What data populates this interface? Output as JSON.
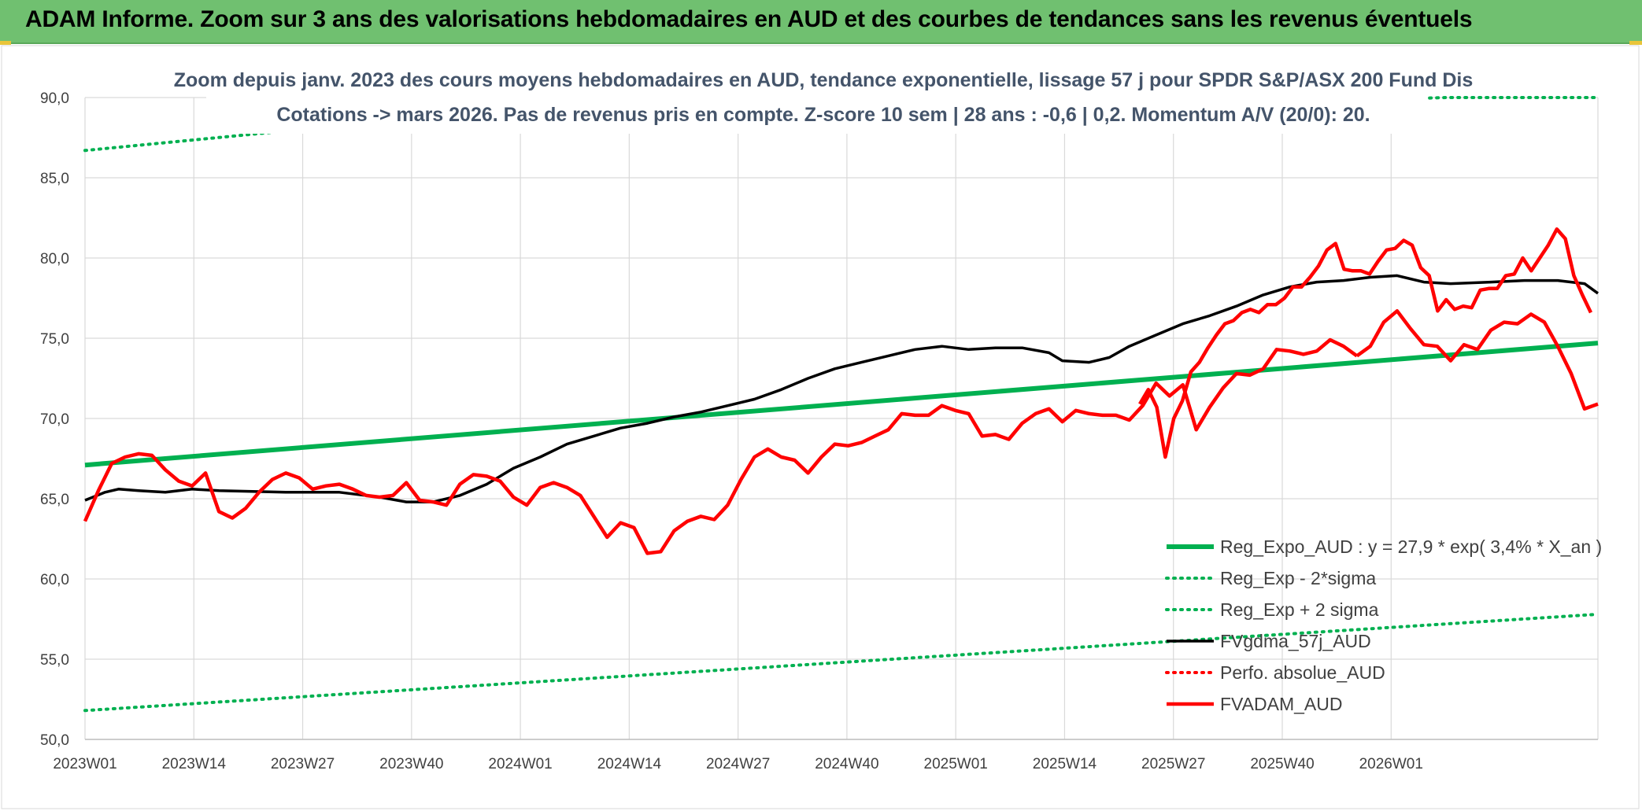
{
  "header": {
    "title": "ADAM Informe. Zoom sur 3 ans des valorisations hebdomadaires en AUD et des courbes de tendances sans les revenus éventuels"
  },
  "colors": {
    "header_bg": "#70c070",
    "reg_expo": "#00b050",
    "sigma_bands": "#00b050",
    "moving_avg": "#000000",
    "perfo": "#ff0000",
    "fvadam": "#ff0000"
  },
  "chart_data": {
    "type": "line",
    "title_line1": "Zoom depuis janv. 2023 des cours moyens hebdomadaires en AUD, tendance exponentielle, lissage 57 j pour SPDR S&P/ASX 200 Fund Dis",
    "title_line2": "Cotations -> mars 2026. Pas de revenus pris en compte. Z-score 10 sem | 28 ans : -0,6 | 0,2. Momentum A/V (20/0): 20.",
    "xlabel": "",
    "ylabel": "",
    "ylim": [
      50,
      90
    ],
    "yticks": [
      "50,0",
      "55,0",
      "60,0",
      "65,0",
      "70,0",
      "75,0",
      "80,0",
      "85,0",
      "90,0"
    ],
    "xticks": [
      "2023W01",
      "2023W14",
      "2023W27",
      "2023W40",
      "2024W01",
      "2024W14",
      "2024W27",
      "2024W40",
      "2025W01",
      "2025W14",
      "2025W27",
      "2025W40",
      "2026W01"
    ],
    "n_weeks": 170,
    "grid": true,
    "legend_position": "bottom-right",
    "series": [
      {
        "name": "Reg_Expo_AUD : y = 27,9 * exp( 3,4% *  X_an )",
        "style": "solid-thick",
        "color": "#00b050",
        "points": [
          [
            0,
            67.1
          ],
          [
            169,
            74.7
          ]
        ]
      },
      {
        "name": "Reg_Exp - 2*sigma",
        "style": "dotted",
        "color": "#00b050",
        "points": [
          [
            0,
            51.8
          ],
          [
            169,
            57.8
          ]
        ]
      },
      {
        "name": "Reg_Exp + 2 sigma",
        "style": "dotted",
        "color": "#00b050",
        "points": [
          [
            0,
            86.7
          ],
          [
            24,
            88.0
          ],
          [
            152,
            90.0
          ],
          [
            169,
            90.0
          ]
        ]
      },
      {
        "name": "FVgdma_57j_AUD",
        "style": "solid",
        "color": "#000000",
        "points": [
          [
            0,
            64.9
          ],
          [
            3,
            65.4
          ],
          [
            5,
            65.6
          ],
          [
            8,
            65.5
          ],
          [
            12,
            65.4
          ],
          [
            16,
            65.6
          ],
          [
            20,
            65.5
          ],
          [
            30,
            65.4
          ],
          [
            38,
            65.4
          ],
          [
            44,
            65.1
          ],
          [
            48,
            64.8
          ],
          [
            52,
            64.8
          ],
          [
            56,
            65.2
          ],
          [
            60,
            65.9
          ],
          [
            64,
            66.9
          ],
          [
            68,
            67.6
          ],
          [
            72,
            68.4
          ],
          [
            76,
            68.9
          ],
          [
            80,
            69.4
          ],
          [
            84,
            69.7
          ],
          [
            88,
            70.1
          ],
          [
            92,
            70.4
          ],
          [
            96,
            70.8
          ],
          [
            100,
            71.2
          ],
          [
            104,
            71.8
          ],
          [
            108,
            72.5
          ],
          [
            112,
            73.1
          ],
          [
            116,
            73.5
          ],
          [
            120,
            73.9
          ],
          [
            124,
            74.3
          ],
          [
            128,
            74.5
          ],
          [
            132,
            74.3
          ],
          [
            136,
            74.4
          ],
          [
            140,
            74.4
          ],
          [
            144,
            74.1
          ],
          [
            146,
            73.6
          ],
          [
            150,
            73.5
          ],
          [
            153,
            73.8
          ],
          [
            156,
            74.5
          ],
          [
            160,
            75.2
          ],
          [
            164,
            75.9
          ],
          [
            168,
            76.4
          ],
          [
            172,
            77.0
          ],
          [
            176,
            77.7
          ],
          [
            180,
            78.2
          ],
          [
            184,
            78.5
          ],
          [
            188,
            78.6
          ],
          [
            192,
            78.8
          ],
          [
            196,
            78.9
          ],
          [
            200,
            78.5
          ],
          [
            204,
            78.4
          ],
          [
            210,
            78.5
          ],
          [
            215,
            78.6
          ],
          [
            220,
            78.6
          ],
          [
            224,
            78.4
          ],
          [
            226,
            77.8
          ]
        ],
        "x_scale_max": 226
      },
      {
        "name": "Perfo. absolue_AUD",
        "style": "dotted",
        "color": "#ff0000",
        "points": []
      },
      {
        "name": "FVADAM_AUD",
        "style": "solid-thick",
        "color": "#ff0000",
        "x_scale_max": 226,
        "points": [
          [
            0,
            63.6
          ],
          [
            2,
            65.5
          ],
          [
            4,
            67.2
          ],
          [
            6,
            67.6
          ],
          [
            8,
            67.8
          ],
          [
            10,
            67.7
          ],
          [
            12,
            66.8
          ],
          [
            14,
            66.1
          ],
          [
            16,
            65.8
          ],
          [
            18,
            66.6
          ],
          [
            20,
            64.2
          ],
          [
            22,
            63.8
          ],
          [
            24,
            64.4
          ],
          [
            26,
            65.4
          ],
          [
            28,
            66.2
          ],
          [
            30,
            66.6
          ],
          [
            32,
            66.3
          ],
          [
            34,
            65.6
          ],
          [
            36,
            65.8
          ],
          [
            38,
            65.9
          ],
          [
            40,
            65.6
          ],
          [
            42,
            65.2
          ],
          [
            44,
            65.1
          ],
          [
            46,
            65.2
          ],
          [
            48,
            66.0
          ],
          [
            50,
            64.9
          ],
          [
            52,
            64.8
          ],
          [
            54,
            64.6
          ],
          [
            56,
            65.9
          ],
          [
            58,
            66.5
          ],
          [
            60,
            66.4
          ],
          [
            62,
            66.1
          ],
          [
            64,
            65.1
          ],
          [
            66,
            64.6
          ],
          [
            68,
            65.7
          ],
          [
            70,
            66.0
          ],
          [
            72,
            65.7
          ],
          [
            74,
            65.2
          ],
          [
            76,
            63.9
          ],
          [
            78,
            62.6
          ],
          [
            80,
            63.5
          ],
          [
            82,
            63.2
          ],
          [
            84,
            61.6
          ],
          [
            86,
            61.7
          ],
          [
            88,
            63.0
          ],
          [
            90,
            63.6
          ],
          [
            92,
            63.9
          ],
          [
            94,
            63.7
          ],
          [
            96,
            64.6
          ],
          [
            98,
            66.2
          ],
          [
            100,
            67.6
          ],
          [
            102,
            68.1
          ],
          [
            104,
            67.6
          ],
          [
            106,
            67.4
          ],
          [
            108,
            66.6
          ],
          [
            110,
            67.6
          ],
          [
            112,
            68.4
          ],
          [
            114,
            68.3
          ],
          [
            116,
            68.5
          ],
          [
            118,
            68.9
          ],
          [
            120,
            69.3
          ],
          [
            122,
            70.3
          ],
          [
            124,
            70.2
          ],
          [
            126,
            70.2
          ],
          [
            128,
            70.8
          ],
          [
            130,
            70.5
          ],
          [
            132,
            70.3
          ],
          [
            134,
            68.9
          ],
          [
            136,
            69.0
          ],
          [
            138,
            68.7
          ],
          [
            140,
            69.7
          ],
          [
            142,
            70.3
          ],
          [
            144,
            70.6
          ],
          [
            146,
            69.8
          ],
          [
            148,
            70.5
          ],
          [
            150,
            70.3
          ],
          [
            152,
            70.2
          ],
          [
            154,
            70.2
          ],
          [
            156,
            69.9
          ],
          [
            158,
            70.8
          ],
          [
            160,
            72.2
          ],
          [
            162,
            71.4
          ],
          [
            164,
            72.1
          ],
          [
            166,
            69.3
          ],
          [
            168,
            70.7
          ],
          [
            170,
            71.9
          ],
          [
            172,
            72.8
          ],
          [
            174,
            72.7
          ],
          [
            176,
            73.1
          ],
          [
            178,
            74.3
          ],
          [
            180,
            74.2
          ],
          [
            182,
            74.0
          ],
          [
            184,
            74.2
          ],
          [
            186,
            74.9
          ],
          [
            188,
            74.5
          ],
          [
            190,
            73.9
          ]
        ]
      }
    ]
  }
}
